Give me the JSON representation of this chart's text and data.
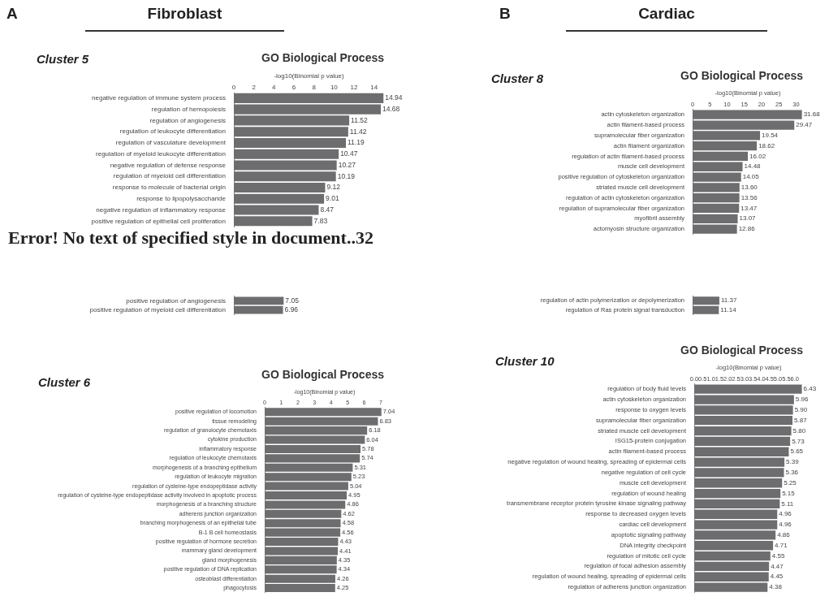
{
  "chart_data": [
    {
      "type": "bar",
      "orientation": "horizontal",
      "title": "GO Biological Process",
      "subtitle": "Cluster 5",
      "xlabel": "-log10(Binomial p value)",
      "color": "#6d6d70",
      "xlim": [
        0,
        15
      ],
      "xticks": [
        0,
        2,
        4,
        6,
        8,
        10,
        12,
        14
      ],
      "categories": [
        "negative regulation of immune system process",
        "regulation of hemopoiesis",
        "regulation of angiogenesis",
        "regulation of leukocyte differentiation",
        "regulation of vasculature development",
        "regulation of myeloid leukocyte differentiation",
        "negative regulation of defense response",
        "regulation of myeloid cell differentiation",
        "response to molecule of bacterial origin",
        "response to lipopolysaccharide",
        "negative regulation of inflammatory response",
        "positive regulation of epithelial cell proliferation"
      ],
      "values": [
        14.94,
        14.68,
        11.52,
        11.42,
        11.19,
        10.47,
        10.27,
        10.19,
        9.12,
        9.01,
        8.47,
        7.83
      ],
      "value_labels": [
        "14.94",
        "14.68",
        "11.52",
        "11.42",
        "11.19",
        "10.47",
        "10.27",
        "10.19",
        "9.12",
        "9.01",
        "8.47",
        "7.83"
      ],
      "annotations": [
        "A",
        "Fibroblast",
        "Error! No text of specified style in document..32"
      ]
    },
    {
      "type": "bar",
      "orientation": "horizontal",
      "title": "GO Biological Process",
      "subtitle": "Cluster 8",
      "xlabel": "-log10(Binomial p value)",
      "color": "#6d6d70",
      "xlim": [
        0,
        32
      ],
      "xticks": [
        0,
        5,
        10,
        15,
        20,
        25,
        30
      ],
      "categories": [
        "actin cytoskeleton organization",
        "actin filament-based process",
        "supramolecular fiber organization",
        "actin filament organization",
        "regulation of actin filament-based process",
        "muscle cell development",
        "positive regulation of cytoskeleton organization",
        "striated muscle cell development",
        "regulation of actin cytoskeleton organization",
        "regulation of supramolecular fiber organization",
        "myofibril assembly",
        "actomyosin structure organization"
      ],
      "values": [
        31.68,
        29.47,
        19.54,
        18.62,
        16.02,
        14.48,
        14.05,
        13.6,
        13.56,
        13.47,
        13.07,
        12.86
      ],
      "value_labels": [
        "31.68",
        "29.47",
        "19.54",
        "18.62",
        "16.02",
        "14.48",
        "14.05",
        "13.60",
        "13.56",
        "13.47",
        "13.07",
        "12.86"
      ],
      "annotations": [
        "B",
        "Cardiac"
      ]
    },
    {
      "type": "bar",
      "orientation": "horizontal",
      "color": "#6d6d70",
      "tick_labels": "y",
      "categories": [
        "positive regulation of angiogenesis",
        "positive regulation of myeloid cell differentiation"
      ],
      "values": [
        7.05,
        6.96
      ],
      "value_labels": [
        "7.05",
        "6.96"
      ]
    },
    {
      "type": "bar",
      "orientation": "horizontal",
      "color": "#6d6d70",
      "tick_labels": "y",
      "categories": [
        "regulation of actin polymerization or depolymerization",
        "regulation of Ras protein signal transduction"
      ],
      "values": [
        11.37,
        11.14
      ],
      "value_labels": [
        "11.37",
        "11.14"
      ]
    },
    {
      "type": "bar",
      "orientation": "horizontal",
      "title": "GO Biological Process",
      "subtitle": "Cluster 6",
      "xlabel": "-log10(Binomial p value)",
      "color": "#6d6d70",
      "xlim": [
        0,
        7.2
      ],
      "xticks": [
        0,
        1,
        2,
        3,
        4,
        5,
        6,
        7
      ],
      "categories": [
        "positive regulation of locomotion",
        "tissue remodeling",
        "regulation of granulocyte chemotaxis",
        "cytokine production",
        "inflammatory response",
        "regulation of leukocyte chemotaxis",
        "morphogenesis of a branching epithelium",
        "regulation of leukocyte migration",
        "regulation of cysteine-type endopeptidase activity",
        "regulation of cysteine-type endopeptidase activity involved in apoptotic process",
        "morphogenesis of a branching structure",
        "adherens junction organization",
        "branching morphogenesis of an epithelial tube",
        "B-1 B cell homeostasis",
        "positive regulation of hormone secretion",
        "mammary gland development",
        "gland morphogenesis",
        "positive regulation of DNA replication",
        "osteoblast differentiation",
        "phagocytosis"
      ],
      "values": [
        7.04,
        6.83,
        6.18,
        6.04,
        5.78,
        5.74,
        5.31,
        5.23,
        5.04,
        4.95,
        4.86,
        4.62,
        4.58,
        4.56,
        4.43,
        4.41,
        4.35,
        4.34,
        4.26,
        4.25
      ],
      "value_labels": [
        "7.04",
        "6.83",
        "6.18",
        "6.04",
        "5.78",
        "5.74",
        "5.31",
        "5.23",
        "5.04",
        "4.95",
        "4.86",
        "4.62",
        "4.58",
        "4.56",
        "4.43",
        "4.41",
        "4.35",
        "4.34",
        "4.26",
        "4.25"
      ]
    },
    {
      "type": "bar",
      "orientation": "horizontal",
      "title": "GO Biological Process",
      "subtitle": "Cluster 10",
      "xlabel": "-log10(Binomial p value)",
      "color": "#6d6d70",
      "xlim": [
        0,
        6.5
      ],
      "xticks": [
        {
          "value": 0,
          "label": "0.0"
        },
        {
          "value": 0.5,
          "label": "0.5"
        },
        {
          "value": 1,
          "label": "1.0"
        },
        {
          "value": 1.5,
          "label": "1.5"
        },
        {
          "value": 2,
          "label": "2.0"
        },
        {
          "value": 2.5,
          "label": "2.5"
        },
        {
          "value": 3,
          "label": "3.0"
        },
        {
          "value": 3.5,
          "label": "3.5"
        },
        {
          "value": 4,
          "label": "4.0"
        },
        {
          "value": 4.5,
          "label": "4.5"
        },
        {
          "value": 5,
          "label": "5.0"
        },
        {
          "value": 5.5,
          "label": "5.5"
        },
        {
          "value": 6,
          "label": "6.0"
        }
      ],
      "categories": [
        "regulation of body fluid levels",
        "actin cytoskeleton organization",
        "response to oxygen levels",
        "supramolecular fiber organization",
        "striated muscle cell development",
        "ISG15-protein conjugation",
        "actin filament-based process",
        "negative regulation of wound healing, spreading of epidermal cells",
        "negative regulation of cell cycle",
        "muscle cell development",
        "regulation of wound healing",
        "transmembrane receptor protein tyrosine kinase signaling pathway",
        "response to decreased oxygen levels",
        "cardiac cell development",
        "apoptotic signaling pathway",
        "DNA integrity checkpoint",
        "regulation of mitotic cell cycle",
        "regulation of focal adhesion assembly",
        "regulation of wound healing, spreading of epidermal cells",
        "regulation of adherens junction organization"
      ],
      "values": [
        6.43,
        5.96,
        5.9,
        5.87,
        5.8,
        5.73,
        5.65,
        5.39,
        5.36,
        5.25,
        5.15,
        5.11,
        4.96,
        4.96,
        4.86,
        4.71,
        4.55,
        4.47,
        4.45,
        4.38
      ],
      "value_labels": [
        "6.43",
        "5.96",
        "5.90",
        "5.87",
        "5.80",
        "5.73",
        "5.65",
        "5.39",
        "5.36",
        "5.25",
        "5.15",
        "5.11",
        "4.96",
        "4.96",
        "4.86",
        "4.71",
        "4.55",
        "4.47",
        "4.45",
        "4.38"
      ]
    }
  ]
}
